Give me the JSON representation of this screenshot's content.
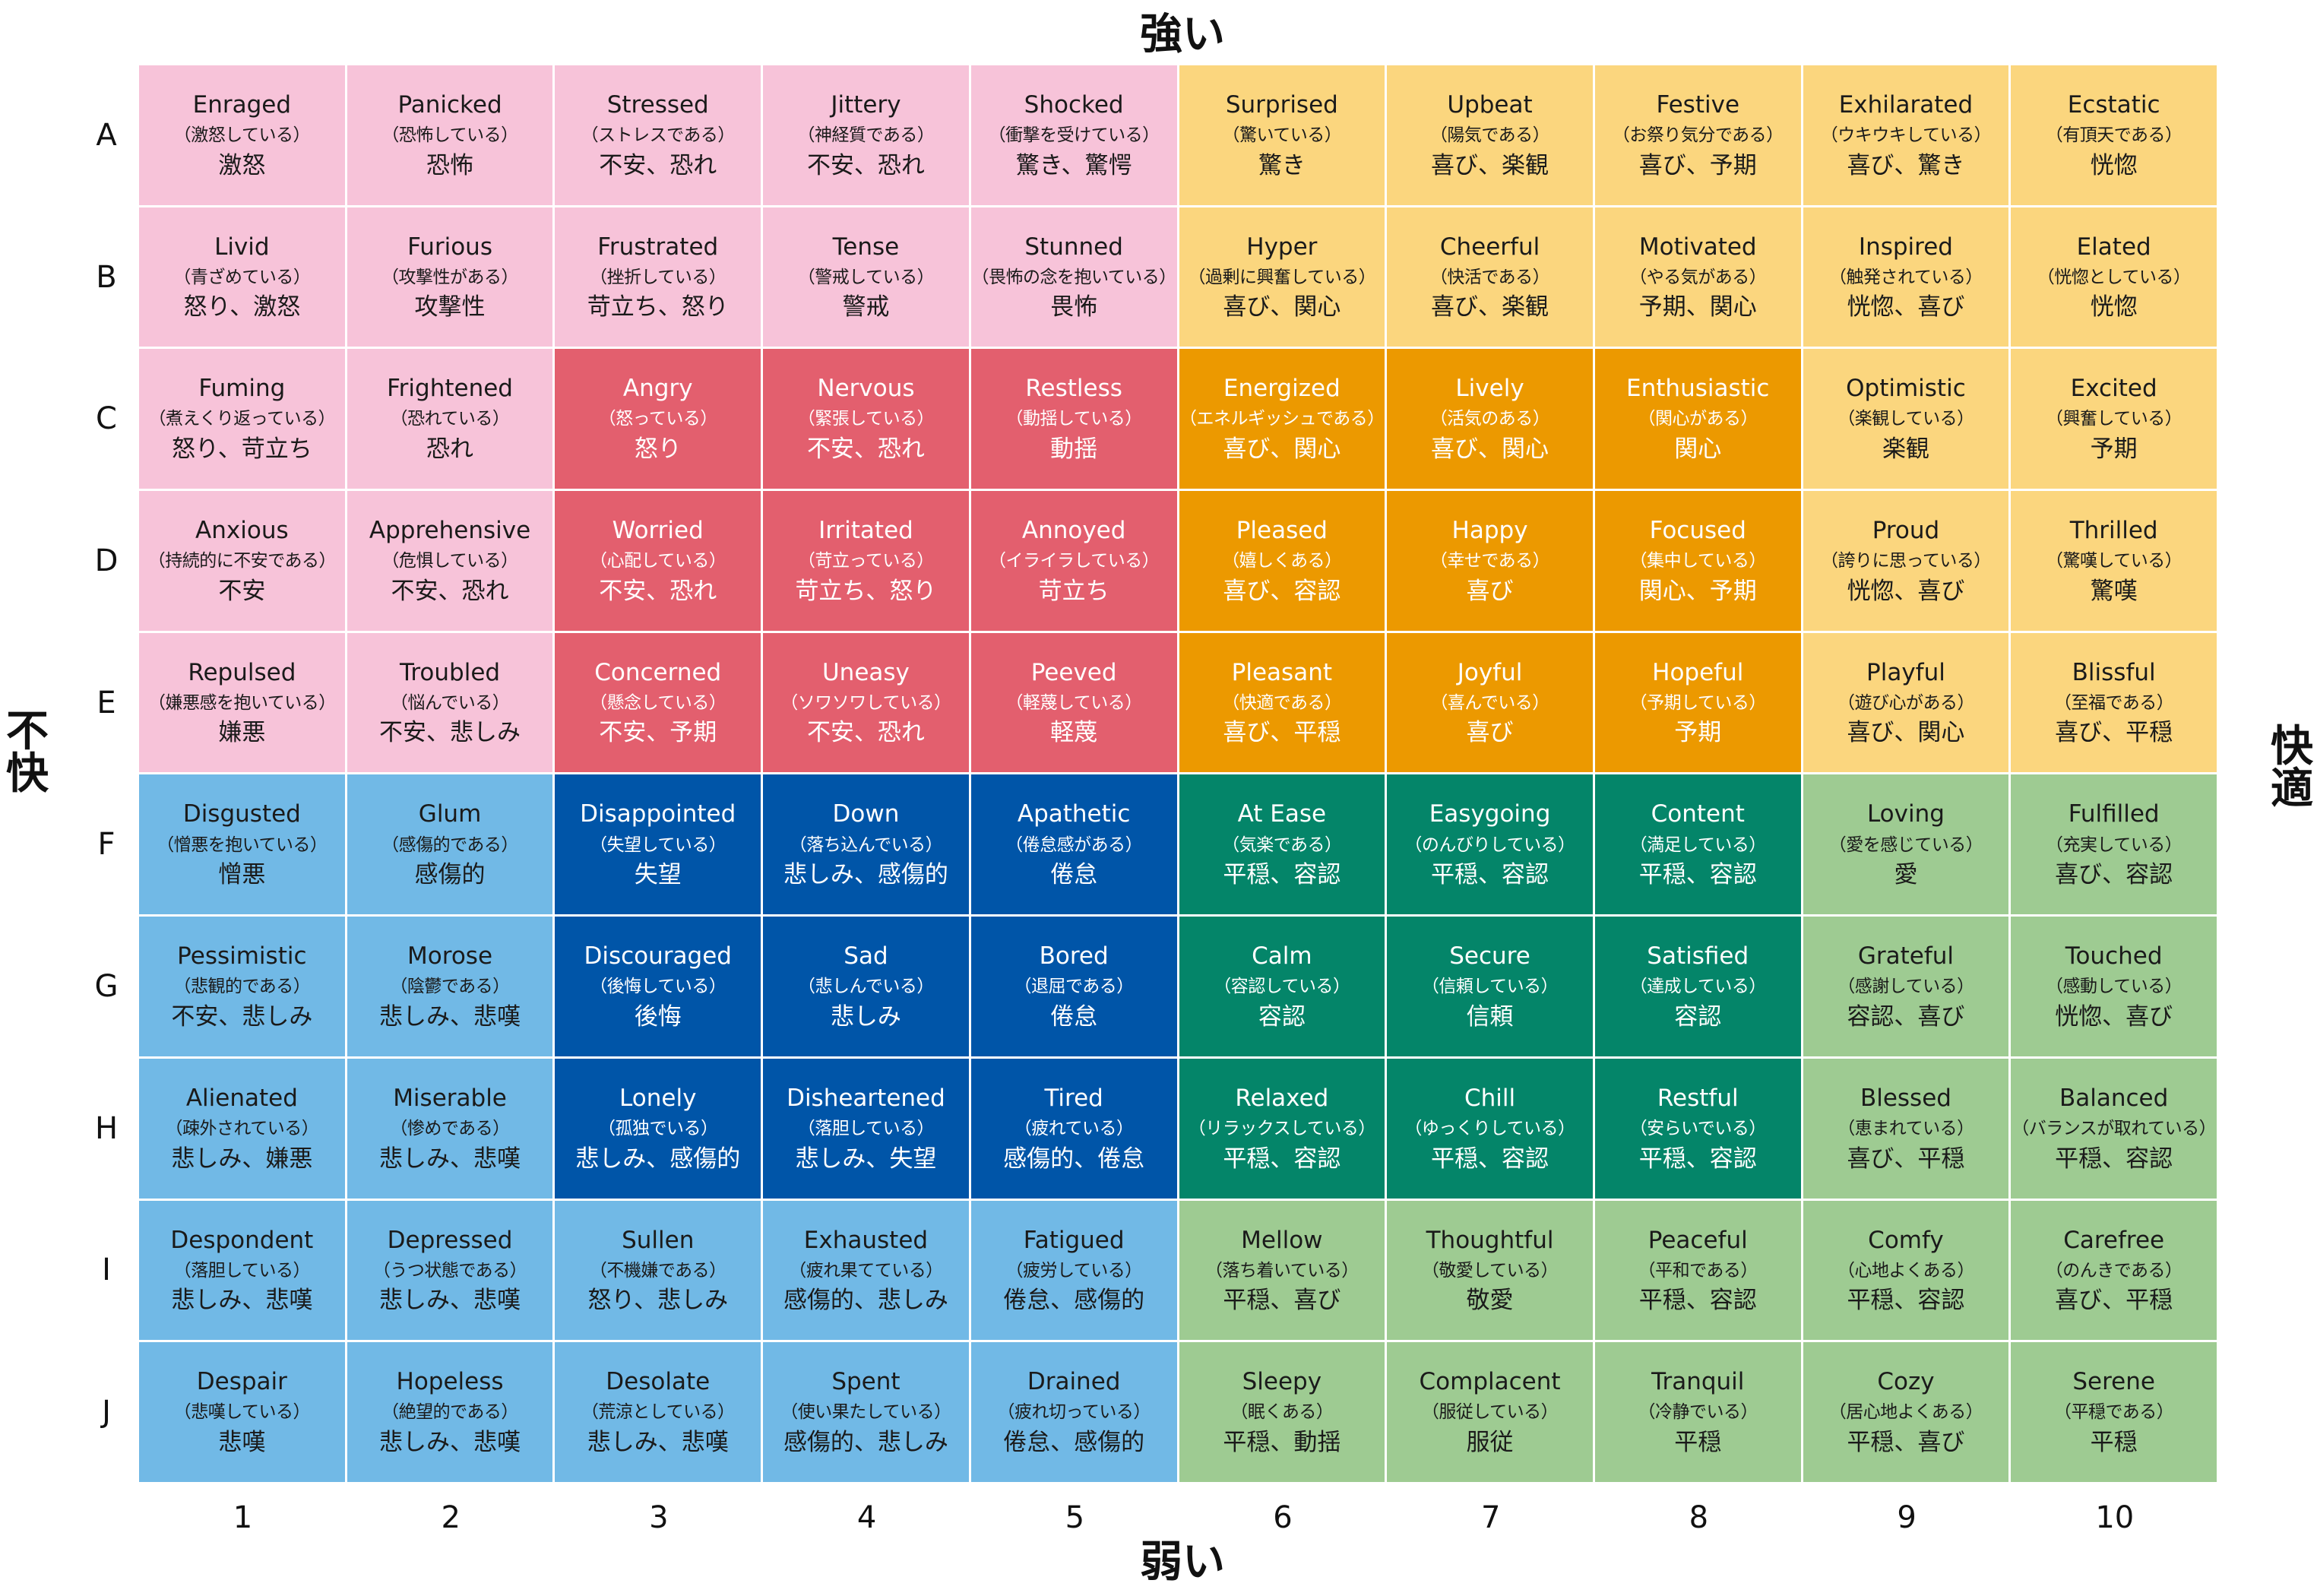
{
  "axes": {
    "top": "強い",
    "bottom": "弱い",
    "left": "不快",
    "right": "快適"
  },
  "row_labels": [
    "A",
    "B",
    "C",
    "D",
    "E",
    "F",
    "G",
    "H",
    "I",
    "J"
  ],
  "col_labels": [
    "1",
    "2",
    "3",
    "4",
    "5",
    "6",
    "7",
    "8",
    "9",
    "10"
  ],
  "colors": {
    "pink": "#f7c3d9",
    "red": "#e35f6e",
    "light_blue": "#71b9e6",
    "dark_blue": "#0055a8",
    "yellow": "#fbd67e",
    "orange": "#ec9900",
    "teal": "#048569",
    "light_green": "#9ecb92"
  },
  "rows": [
    [
      {
        "en": "Enraged",
        "jp": "（激怒している）",
        "cat": "激怒",
        "color": "pink"
      },
      {
        "en": "Panicked",
        "jp": "（恐怖している）",
        "cat": "恐怖",
        "color": "pink"
      },
      {
        "en": "Stressed",
        "jp": "（ストレスである）",
        "cat": "不安、恐れ",
        "color": "pink"
      },
      {
        "en": "Jittery",
        "jp": "（神経質である）",
        "cat": "不安、恐れ",
        "color": "pink"
      },
      {
        "en": "Shocked",
        "jp": "（衝撃を受けている）",
        "cat": "驚き、驚愕",
        "color": "pink"
      },
      {
        "en": "Surprised",
        "jp": "（驚いている）",
        "cat": "驚き",
        "color": "yellow"
      },
      {
        "en": "Upbeat",
        "jp": "（陽気である）",
        "cat": "喜び、楽観",
        "color": "yellow"
      },
      {
        "en": "Festive",
        "jp": "（お祭り気分である）",
        "cat": "喜び、予期",
        "color": "yellow"
      },
      {
        "en": "Exhilarated",
        "jp": "（ウキウキしている）",
        "cat": "喜び、驚き",
        "color": "yellow"
      },
      {
        "en": "Ecstatic",
        "jp": "（有頂天である）",
        "cat": "恍惚",
        "color": "yellow"
      }
    ],
    [
      {
        "en": "Livid",
        "jp": "（青ざめている）",
        "cat": "怒り、激怒",
        "color": "pink"
      },
      {
        "en": "Furious",
        "jp": "（攻撃性がある）",
        "cat": "攻撃性",
        "color": "pink"
      },
      {
        "en": "Frustrated",
        "jp": "（挫折している）",
        "cat": "苛立ち、怒り",
        "color": "pink"
      },
      {
        "en": "Tense",
        "jp": "（警戒している）",
        "cat": "警戒",
        "color": "pink"
      },
      {
        "en": "Stunned",
        "jp": "（畏怖の念を抱いている）",
        "cat": "畏怖",
        "color": "pink"
      },
      {
        "en": "Hyper",
        "jp": "（過剰に興奮している）",
        "cat": "喜び、関心",
        "color": "yellow"
      },
      {
        "en": "Cheerful",
        "jp": "（快活である）",
        "cat": "喜び、楽観",
        "color": "yellow"
      },
      {
        "en": "Motivated",
        "jp": "（やる気がある）",
        "cat": "予期、関心",
        "color": "yellow"
      },
      {
        "en": "Inspired",
        "jp": "（触発されている）",
        "cat": "恍惚、喜び",
        "color": "yellow"
      },
      {
        "en": "Elated",
        "jp": "（恍惚としている）",
        "cat": "恍惚",
        "color": "yellow"
      }
    ],
    [
      {
        "en": "Fuming",
        "jp": "（煮えくり返っている）",
        "cat": "怒り、苛立ち",
        "color": "pink"
      },
      {
        "en": "Frightened",
        "jp": "（恐れている）",
        "cat": "恐れ",
        "color": "pink"
      },
      {
        "en": "Angry",
        "jp": "（怒っている）",
        "cat": "怒り",
        "color": "red"
      },
      {
        "en": "Nervous",
        "jp": "（緊張している）",
        "cat": "不安、恐れ",
        "color": "red"
      },
      {
        "en": "Restless",
        "jp": "（動揺している）",
        "cat": "動揺",
        "color": "red"
      },
      {
        "en": "Energized",
        "jp": "（エネルギッシュである）",
        "cat": "喜び、関心",
        "color": "orange"
      },
      {
        "en": "Lively",
        "jp": "（活気のある）",
        "cat": "喜び、関心",
        "color": "orange"
      },
      {
        "en": "Enthusiastic",
        "jp": "（関心がある）",
        "cat": "関心",
        "color": "orange"
      },
      {
        "en": "Optimistic",
        "jp": "（楽観している）",
        "cat": "楽観",
        "color": "yellow"
      },
      {
        "en": "Excited",
        "jp": "（興奮している）",
        "cat": "予期",
        "color": "yellow"
      }
    ],
    [
      {
        "en": "Anxious",
        "jp": "（持続的に不安である）",
        "cat": "不安",
        "color": "pink"
      },
      {
        "en": "Apprehensive",
        "jp": "（危惧している）",
        "cat": "不安、恐れ",
        "color": "pink"
      },
      {
        "en": "Worried",
        "jp": "（心配している）",
        "cat": "不安、恐れ",
        "color": "red"
      },
      {
        "en": "Irritated",
        "jp": "（苛立っている）",
        "cat": "苛立ち、怒り",
        "color": "red"
      },
      {
        "en": "Annoyed",
        "jp": "（イライラしている）",
        "cat": "苛立ち",
        "color": "red"
      },
      {
        "en": "Pleased",
        "jp": "（嬉しくある）",
        "cat": "喜び、容認",
        "color": "orange"
      },
      {
        "en": "Happy",
        "jp": "（幸せである）",
        "cat": "喜び",
        "color": "orange"
      },
      {
        "en": "Focused",
        "jp": "（集中している）",
        "cat": "関心、予期",
        "color": "orange"
      },
      {
        "en": "Proud",
        "jp": "（誇りに思っている）",
        "cat": "恍惚、喜び",
        "color": "yellow"
      },
      {
        "en": "Thrilled",
        "jp": "（驚嘆している）",
        "cat": "驚嘆",
        "color": "yellow"
      }
    ],
    [
      {
        "en": "Repulsed",
        "jp": "（嫌悪感を抱いている）",
        "cat": "嫌悪",
        "color": "pink"
      },
      {
        "en": "Troubled",
        "jp": "（悩んでいる）",
        "cat": "不安、悲しみ",
        "color": "pink"
      },
      {
        "en": "Concerned",
        "jp": "（懸念している）",
        "cat": "不安、予期",
        "color": "red"
      },
      {
        "en": "Uneasy",
        "jp": "（ソワソワしている）",
        "cat": "不安、恐れ",
        "color": "red"
      },
      {
        "en": "Peeved",
        "jp": "（軽蔑している）",
        "cat": "軽蔑",
        "color": "red"
      },
      {
        "en": "Pleasant",
        "jp": "（快適である）",
        "cat": "喜び、平穏",
        "color": "orange"
      },
      {
        "en": "Joyful",
        "jp": "（喜んでいる）",
        "cat": "喜び",
        "color": "orange"
      },
      {
        "en": "Hopeful",
        "jp": "（予期している）",
        "cat": "予期",
        "color": "orange"
      },
      {
        "en": "Playful",
        "jp": "（遊び心がある）",
        "cat": "喜び、関心",
        "color": "yellow"
      },
      {
        "en": "Blissful",
        "jp": "（至福である）",
        "cat": "喜び、平穏",
        "color": "yellow"
      }
    ],
    [
      {
        "en": "Disgusted",
        "jp": "（憎悪を抱いている）",
        "cat": "憎悪",
        "color": "light_blue"
      },
      {
        "en": "Glum",
        "jp": "（感傷的である）",
        "cat": "感傷的",
        "color": "light_blue"
      },
      {
        "en": "Disappointed",
        "jp": "（失望している）",
        "cat": "失望",
        "color": "dark_blue"
      },
      {
        "en": "Down",
        "jp": "（落ち込んでいる）",
        "cat": "悲しみ、感傷的",
        "color": "dark_blue"
      },
      {
        "en": "Apathetic",
        "jp": "（倦怠感がある）",
        "cat": "倦怠",
        "color": "dark_blue"
      },
      {
        "en": "At Ease",
        "jp": "（気楽である）",
        "cat": "平穏、容認",
        "color": "teal"
      },
      {
        "en": "Easygoing",
        "jp": "（のんびりしている）",
        "cat": "平穏、容認",
        "color": "teal"
      },
      {
        "en": "Content",
        "jp": "（満足している）",
        "cat": "平穏、容認",
        "color": "teal"
      },
      {
        "en": "Loving",
        "jp": "（愛を感じている）",
        "cat": "愛",
        "color": "light_green"
      },
      {
        "en": "Fulfilled",
        "jp": "（充実している）",
        "cat": "喜び、容認",
        "color": "light_green"
      }
    ],
    [
      {
        "en": "Pessimistic",
        "jp": "（悲観的である）",
        "cat": "不安、悲しみ",
        "color": "light_blue"
      },
      {
        "en": "Morose",
        "jp": "（陰鬱である）",
        "cat": "悲しみ、悲嘆",
        "color": "light_blue"
      },
      {
        "en": "Discouraged",
        "jp": "（後悔している）",
        "cat": "後悔",
        "color": "dark_blue"
      },
      {
        "en": "Sad",
        "jp": "（悲しんでいる）",
        "cat": "悲しみ",
        "color": "dark_blue"
      },
      {
        "en": "Bored",
        "jp": "（退屈である）",
        "cat": "倦怠",
        "color": "dark_blue"
      },
      {
        "en": "Calm",
        "jp": "（容認している）",
        "cat": "容認",
        "color": "teal"
      },
      {
        "en": "Secure",
        "jp": "（信頼している）",
        "cat": "信頼",
        "color": "teal"
      },
      {
        "en": "Satisfied",
        "jp": "（達成している）",
        "cat": "容認",
        "color": "teal"
      },
      {
        "en": "Grateful",
        "jp": "（感謝している）",
        "cat": "容認、喜び",
        "color": "light_green"
      },
      {
        "en": "Touched",
        "jp": "（感動している）",
        "cat": "恍惚、喜び",
        "color": "light_green"
      }
    ],
    [
      {
        "en": "Alienated",
        "jp": "（疎外されている）",
        "cat": "悲しみ、嫌悪",
        "color": "light_blue"
      },
      {
        "en": "Miserable",
        "jp": "（惨めである）",
        "cat": "悲しみ、悲嘆",
        "color": "light_blue"
      },
      {
        "en": "Lonely",
        "jp": "（孤独でいる）",
        "cat": "悲しみ、感傷的",
        "color": "dark_blue"
      },
      {
        "en": "Disheartened",
        "jp": "（落胆している）",
        "cat": "悲しみ、失望",
        "color": "dark_blue"
      },
      {
        "en": "Tired",
        "jp": "（疲れている）",
        "cat": "感傷的、倦怠",
        "color": "dark_blue"
      },
      {
        "en": "Relaxed",
        "jp": "（リラックスしている）",
        "cat": "平穏、容認",
        "color": "teal"
      },
      {
        "en": "Chill",
        "jp": "（ゆっくりしている）",
        "cat": "平穏、容認",
        "color": "teal"
      },
      {
        "en": "Restful",
        "jp": "（安らいでいる）",
        "cat": "平穏、容認",
        "color": "teal"
      },
      {
        "en": "Blessed",
        "jp": "（恵まれている）",
        "cat": "喜び、平穏",
        "color": "light_green"
      },
      {
        "en": "Balanced",
        "jp": "（バランスが取れている）",
        "cat": "平穏、容認",
        "color": "light_green"
      }
    ],
    [
      {
        "en": "Despondent",
        "jp": "（落胆している）",
        "cat": "悲しみ、悲嘆",
        "color": "light_blue"
      },
      {
        "en": "Depressed",
        "jp": "（うつ状態である）",
        "cat": "悲しみ、悲嘆",
        "color": "light_blue"
      },
      {
        "en": "Sullen",
        "jp": "（不機嫌である）",
        "cat": "怒り、悲しみ",
        "color": "light_blue"
      },
      {
        "en": "Exhausted",
        "jp": "（疲れ果てている）",
        "cat": "感傷的、悲しみ",
        "color": "light_blue"
      },
      {
        "en": "Fatigued",
        "jp": "（疲労している）",
        "cat": "倦怠、感傷的",
        "color": "light_blue"
      },
      {
        "en": "Mellow",
        "jp": "（落ち着いている）",
        "cat": "平穏、喜び",
        "color": "light_green"
      },
      {
        "en": "Thoughtful",
        "jp": "（敬愛している）",
        "cat": "敬愛",
        "color": "light_green"
      },
      {
        "en": "Peaceful",
        "jp": "（平和である）",
        "cat": "平穏、容認",
        "color": "light_green"
      },
      {
        "en": "Comfy",
        "jp": "（心地よくある）",
        "cat": "平穏、容認",
        "color": "light_green"
      },
      {
        "en": "Carefree",
        "jp": "（のんきである）",
        "cat": "喜び、平穏",
        "color": "light_green"
      }
    ],
    [
      {
        "en": "Despair",
        "jp": "（悲嘆している）",
        "cat": "悲嘆",
        "color": "light_blue"
      },
      {
        "en": "Hopeless",
        "jp": "（絶望的である）",
        "cat": "悲しみ、悲嘆",
        "color": "light_blue"
      },
      {
        "en": "Desolate",
        "jp": "（荒涼としている）",
        "cat": "悲しみ、悲嘆",
        "color": "light_blue"
      },
      {
        "en": "Spent",
        "jp": "（使い果たしている）",
        "cat": "感傷的、悲しみ",
        "color": "light_blue"
      },
      {
        "en": "Drained",
        "jp": "（疲れ切っている）",
        "cat": "倦怠、感傷的",
        "color": "light_blue"
      },
      {
        "en": "Sleepy",
        "jp": "（眠くある）",
        "cat": "平穏、動揺",
        "color": "light_green"
      },
      {
        "en": "Complacent",
        "jp": "（服従している）",
        "cat": "服従",
        "color": "light_green"
      },
      {
        "en": "Tranquil",
        "jp": "（冷静でいる）",
        "cat": "平穏",
        "color": "light_green"
      },
      {
        "en": "Cozy",
        "jp": "（居心地よくある）",
        "cat": "平穏、喜び",
        "color": "light_green"
      },
      {
        "en": "Serene",
        "jp": "（平穏である）",
        "cat": "平穏",
        "color": "light_green"
      }
    ]
  ]
}
